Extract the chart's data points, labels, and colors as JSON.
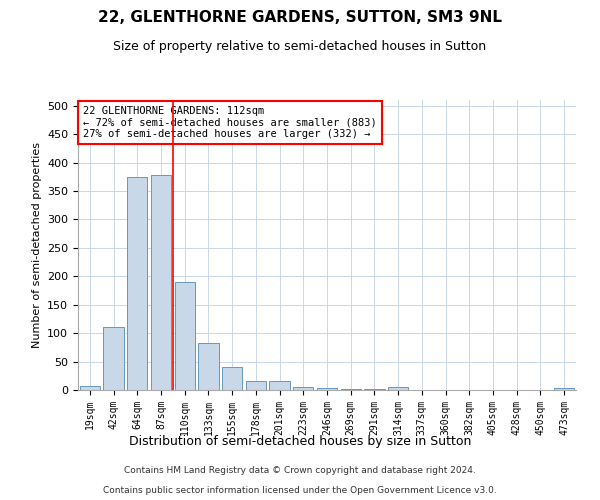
{
  "title_line1": "22, GLENTHORNE GARDENS, SUTTON, SM3 9NL",
  "title_line2": "Size of property relative to semi-detached houses in Sutton",
  "xlabel": "Distribution of semi-detached houses by size in Sutton",
  "ylabel": "Number of semi-detached properties",
  "footnote1": "Contains HM Land Registry data © Crown copyright and database right 2024.",
  "footnote2": "Contains public sector information licensed under the Open Government Licence v3.0.",
  "annotation_line1": "22 GLENTHORNE GARDENS: 112sqm",
  "annotation_line2": "← 72% of semi-detached houses are smaller (883)",
  "annotation_line3": "27% of semi-detached houses are larger (332) →",
  "bar_color": "#c8d8e8",
  "bar_edge_color": "#6699bb",
  "categories": [
    "19sqm",
    "42sqm",
    "64sqm",
    "87sqm",
    "110sqm",
    "133sqm",
    "155sqm",
    "178sqm",
    "201sqm",
    "223sqm",
    "246sqm",
    "269sqm",
    "291sqm",
    "314sqm",
    "337sqm",
    "360sqm",
    "382sqm",
    "405sqm",
    "428sqm",
    "450sqm",
    "473sqm"
  ],
  "values": [
    7,
    110,
    375,
    378,
    190,
    82,
    40,
    15,
    16,
    5,
    3,
    1,
    2,
    5,
    0,
    0,
    0,
    0,
    0,
    0,
    3
  ],
  "ylim": [
    0,
    510
  ],
  "yticks": [
    0,
    50,
    100,
    150,
    200,
    250,
    300,
    350,
    400,
    450,
    500
  ],
  "background_color": "#ffffff",
  "grid_color": "#c8d8e8",
  "redline_bar_index": 4
}
